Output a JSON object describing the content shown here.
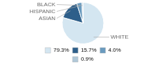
{
  "chart_data": {
    "type": "pie",
    "categories": [
      "WHITE",
      "ASIAN",
      "HISPANIC",
      "BLACK"
    ],
    "values": [
      79.3,
      15.7,
      4.0,
      0.9
    ],
    "value_labels": [
      "79.3%",
      "15.7%",
      "4.0%",
      "0.9%"
    ],
    "colors": [
      "#d4e6f1",
      "#2e5f8a",
      "#6a9bbf",
      "#b0c8d8"
    ],
    "legend": "bottom"
  }
}
